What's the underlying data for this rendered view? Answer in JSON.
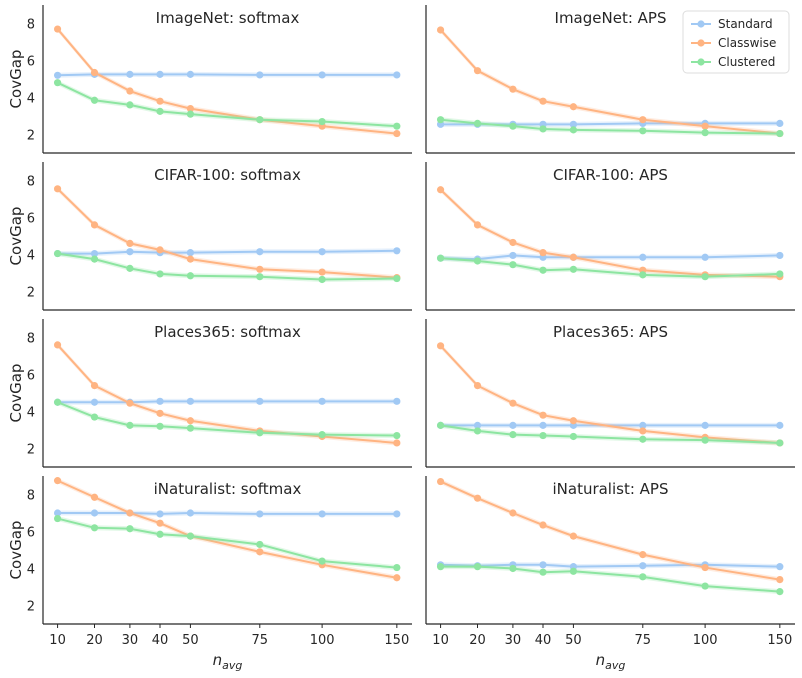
{
  "figure": {
    "xlabel_base": "n",
    "xlabel_sub": "avg",
    "ylabel": "CovGap"
  },
  "legend": [
    {
      "name": "Standard",
      "color": "#a1c9f4"
    },
    {
      "name": "Classwise",
      "color": "#ffb482"
    },
    {
      "name": "Clustered",
      "color": "#8de5a1"
    }
  ],
  "chart_data": [
    {
      "type": "line",
      "title": "ImageNet: softmax",
      "x": [
        10,
        20,
        30,
        40,
        50,
        75,
        100,
        150
      ],
      "ylim": [
        1,
        9
      ],
      "xticks": [
        10,
        20,
        30,
        40,
        50,
        75,
        100,
        150
      ],
      "yticks": [
        2,
        4,
        6,
        8
      ],
      "series": [
        {
          "name": "Standard",
          "values": [
            5.2,
            5.25,
            5.25,
            5.25,
            5.25,
            5.22,
            5.22,
            5.22
          ]
        },
        {
          "name": "Classwise",
          "values": [
            7.7,
            5.35,
            4.35,
            3.8,
            3.4,
            2.8,
            2.45,
            2.05
          ]
        },
        {
          "name": "Clustered",
          "values": [
            4.8,
            3.85,
            3.6,
            3.25,
            3.1,
            2.8,
            2.7,
            2.45
          ]
        }
      ]
    },
    {
      "type": "line",
      "title": "ImageNet: APS",
      "x": [
        10,
        20,
        30,
        40,
        50,
        75,
        100,
        150
      ],
      "ylim": [
        1,
        9
      ],
      "xticks": [
        10,
        20,
        30,
        40,
        50,
        75,
        100,
        150
      ],
      "yticks": [
        2,
        4,
        6,
        8
      ],
      "series": [
        {
          "name": "Standard",
          "values": [
            2.55,
            2.55,
            2.55,
            2.55,
            2.55,
            2.6,
            2.6,
            2.6
          ]
        },
        {
          "name": "Classwise",
          "values": [
            7.65,
            5.45,
            4.45,
            3.8,
            3.5,
            2.8,
            2.45,
            2.05
          ]
        },
        {
          "name": "Clustered",
          "values": [
            2.8,
            2.6,
            2.45,
            2.3,
            2.25,
            2.2,
            2.1,
            2.05
          ]
        }
      ]
    },
    {
      "type": "line",
      "title": "CIFAR-100: softmax",
      "x": [
        10,
        20,
        30,
        40,
        50,
        75,
        100,
        150
      ],
      "ylim": [
        1,
        9
      ],
      "xticks": [
        10,
        20,
        30,
        40,
        50,
        75,
        100,
        150
      ],
      "yticks": [
        2,
        4,
        6,
        8
      ],
      "series": [
        {
          "name": "Standard",
          "values": [
            4.05,
            4.05,
            4.15,
            4.1,
            4.1,
            4.15,
            4.15,
            4.2
          ]
        },
        {
          "name": "Classwise",
          "values": [
            7.55,
            5.6,
            4.6,
            4.25,
            3.75,
            3.2,
            3.05,
            2.75
          ]
        },
        {
          "name": "Clustered",
          "values": [
            4.05,
            3.75,
            3.25,
            2.95,
            2.85,
            2.8,
            2.65,
            2.7
          ]
        }
      ]
    },
    {
      "type": "line",
      "title": "CIFAR-100: APS",
      "x": [
        10,
        20,
        30,
        40,
        50,
        75,
        100,
        150
      ],
      "ylim": [
        1,
        9
      ],
      "xticks": [
        10,
        20,
        30,
        40,
        50,
        75,
        100,
        150
      ],
      "yticks": [
        2,
        4,
        6,
        8
      ],
      "series": [
        {
          "name": "Standard",
          "values": [
            3.8,
            3.75,
            3.95,
            3.85,
            3.85,
            3.85,
            3.85,
            3.95
          ]
        },
        {
          "name": "Classwise",
          "values": [
            7.5,
            5.6,
            4.65,
            4.1,
            3.85,
            3.15,
            2.9,
            2.8
          ]
        },
        {
          "name": "Clustered",
          "values": [
            3.8,
            3.65,
            3.45,
            3.15,
            3.2,
            2.9,
            2.8,
            2.95
          ]
        }
      ]
    },
    {
      "type": "line",
      "title": "Places365: softmax",
      "x": [
        10,
        20,
        30,
        40,
        50,
        75,
        100,
        150
      ],
      "ylim": [
        1,
        9
      ],
      "xticks": [
        10,
        20,
        30,
        40,
        50,
        75,
        100,
        150
      ],
      "yticks": [
        2,
        4,
        6,
        8
      ],
      "series": [
        {
          "name": "Standard",
          "values": [
            4.5,
            4.5,
            4.5,
            4.55,
            4.55,
            4.55,
            4.55,
            4.55
          ]
        },
        {
          "name": "Classwise",
          "values": [
            7.6,
            5.4,
            4.45,
            3.9,
            3.5,
            2.95,
            2.65,
            2.3
          ]
        },
        {
          "name": "Clustered",
          "values": [
            4.5,
            3.7,
            3.25,
            3.2,
            3.1,
            2.85,
            2.75,
            2.7
          ]
        }
      ]
    },
    {
      "type": "line",
      "title": "Places365: APS",
      "x": [
        10,
        20,
        30,
        40,
        50,
        75,
        100,
        150
      ],
      "ylim": [
        1,
        9
      ],
      "xticks": [
        10,
        20,
        30,
        40,
        50,
        75,
        100,
        150
      ],
      "yticks": [
        2,
        4,
        6,
        8
      ],
      "series": [
        {
          "name": "Standard",
          "values": [
            3.25,
            3.25,
            3.25,
            3.25,
            3.25,
            3.25,
            3.25,
            3.25
          ]
        },
        {
          "name": "Classwise",
          "values": [
            7.55,
            5.4,
            4.45,
            3.8,
            3.5,
            2.95,
            2.6,
            2.3
          ]
        },
        {
          "name": "Clustered",
          "values": [
            3.25,
            2.95,
            2.75,
            2.7,
            2.65,
            2.5,
            2.45,
            2.3
          ]
        }
      ]
    },
    {
      "type": "line",
      "title": "iNaturalist: softmax",
      "x": [
        10,
        20,
        30,
        40,
        50,
        75,
        100,
        150
      ],
      "ylim": [
        1,
        9
      ],
      "xticks": [
        10,
        20,
        30,
        40,
        50,
        75,
        100,
        150
      ],
      "yticks": [
        2,
        4,
        6,
        8
      ],
      "series": [
        {
          "name": "Standard",
          "values": [
            7.0,
            7.0,
            7.0,
            6.95,
            7.0,
            6.95,
            6.95,
            6.95
          ]
        },
        {
          "name": "Classwise",
          "values": [
            8.75,
            7.85,
            7.0,
            6.45,
            5.75,
            4.9,
            4.2,
            3.5
          ]
        },
        {
          "name": "Clustered",
          "values": [
            6.7,
            6.2,
            6.15,
            5.85,
            5.75,
            5.3,
            4.4,
            4.05
          ]
        }
      ]
    },
    {
      "type": "line",
      "title": "iNaturalist: APS",
      "x": [
        10,
        20,
        30,
        40,
        50,
        75,
        100,
        150
      ],
      "ylim": [
        1,
        9
      ],
      "xticks": [
        10,
        20,
        30,
        40,
        50,
        75,
        100,
        150
      ],
      "yticks": [
        2,
        4,
        6,
        8
      ],
      "series": [
        {
          "name": "Standard",
          "values": [
            4.2,
            4.15,
            4.2,
            4.2,
            4.1,
            4.15,
            4.2,
            4.1
          ]
        },
        {
          "name": "Classwise",
          "values": [
            8.7,
            7.8,
            7.0,
            6.35,
            5.75,
            4.75,
            4.05,
            3.4
          ]
        },
        {
          "name": "Clustered",
          "values": [
            4.1,
            4.1,
            4.0,
            3.8,
            3.85,
            3.55,
            3.05,
            2.75
          ]
        }
      ]
    }
  ]
}
